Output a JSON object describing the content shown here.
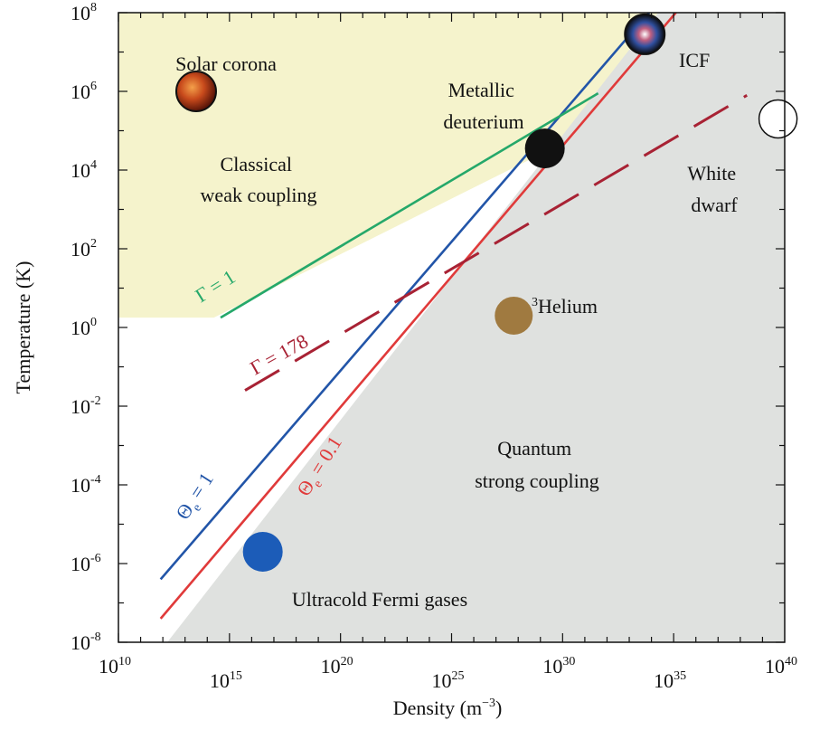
{
  "chart_data": {
    "type": "scatter",
    "title": "",
    "xlabel": "Density (m^-3)",
    "ylabel": "Temperature (K)",
    "x_scale": "log10",
    "y_scale": "log10",
    "xlim_log10": [
      10,
      40
    ],
    "ylim_log10": [
      -8,
      8
    ],
    "x_ticks": [
      {
        "base": "10",
        "exp": "10",
        "log": 10
      },
      {
        "base": "10",
        "exp": "15",
        "log": 15
      },
      {
        "base": "10",
        "exp": "20",
        "log": 20
      },
      {
        "base": "10",
        "exp": "25",
        "log": 25
      },
      {
        "base": "10",
        "exp": "30",
        "log": 30
      },
      {
        "base": "10",
        "exp": "35",
        "log": 35
      },
      {
        "base": "10",
        "exp": "40",
        "log": 40
      }
    ],
    "y_ticks": [
      {
        "base": "10",
        "exp": "8",
        "log": 8
      },
      {
        "base": "10",
        "exp": "6",
        "log": 6
      },
      {
        "base": "10",
        "exp": "4",
        "log": 4
      },
      {
        "base": "10",
        "exp": "2",
        "log": 2
      },
      {
        "base": "10",
        "exp": "0",
        "log": 0
      },
      {
        "base": "10",
        "exp": "-2",
        "log": -2
      },
      {
        "base": "10",
        "exp": "-4",
        "log": -4
      },
      {
        "base": "10",
        "exp": "-6",
        "log": -6
      },
      {
        "base": "10",
        "exp": "-8",
        "log": -8
      }
    ],
    "axis_labels": {
      "x": {
        "prefix": "Density (m",
        "sup": "−3",
        "suffix": ")"
      },
      "y": "Temperature (K)"
    },
    "regions": [
      {
        "name": "classical-weak-coupling",
        "color": "#f5f3cc",
        "polygon_log": [
          [
            10,
            8
          ],
          [
            34.3,
            8
          ],
          [
            31.3,
            5.05
          ],
          [
            14.3,
            0.25
          ],
          [
            10,
            0.25
          ]
        ]
      },
      {
        "name": "quantum-strong-coupling",
        "color": "#dfe1df",
        "polygon_log": [
          [
            12.2,
            -8
          ],
          [
            40,
            -8
          ],
          [
            40,
            8
          ],
          [
            34.3,
            8
          ],
          [
            12.2,
            -8
          ]
        ]
      }
    ],
    "series": [
      {
        "name": "theta-e-1",
        "label_main": "Θ",
        "label_sub": "e",
        "label_rest": " = 1",
        "color": "#2255a8",
        "style": "solid",
        "points_log": [
          [
            11.9,
            -6.4
          ],
          [
            34.5,
            8.4
          ]
        ]
      },
      {
        "name": "theta-e-0.1",
        "label_main": "Θ",
        "label_sub": "e",
        "label_rest": " = 0.1",
        "color": "#e03a3a",
        "style": "solid",
        "points_log": [
          [
            11.9,
            -7.4
          ],
          [
            35.4,
            8.2
          ]
        ]
      },
      {
        "name": "gamma-1",
        "label_main": "Γ = 1",
        "color": "#25a86a",
        "style": "solid",
        "points_log": [
          [
            14.6,
            0.25
          ],
          [
            31.6,
            5.95
          ]
        ]
      },
      {
        "name": "gamma-178",
        "label_main": "Γ = 178",
        "color": "#a82234",
        "style": "dashed",
        "points_log": [
          [
            15.7,
            -1.6
          ],
          [
            38.3,
            5.9
          ]
        ]
      }
    ],
    "points": [
      {
        "name": "solar-corona",
        "label": "Solar corona",
        "x": 13.5,
        "y": 6.0,
        "color": "#c84a1c",
        "style": "textured"
      },
      {
        "name": "icf",
        "label": "ICF",
        "x": 33.7,
        "y": 7.45,
        "color": "#111111",
        "style": "textured"
      },
      {
        "name": "metallic-deuterium",
        "label": "Metallic deuterium",
        "x": 29.2,
        "y": 4.55,
        "color": "#111111",
        "style": "solid"
      },
      {
        "name": "white-dwarf",
        "label": "White dwarf",
        "x": 39.7,
        "y": 5.3,
        "color": "#ffffff",
        "style": "outline"
      },
      {
        "name": "helium-3",
        "label_sup": "3",
        "label": "Helium",
        "x": 27.8,
        "y": 0.3,
        "color": "#a07a40",
        "style": "solid"
      },
      {
        "name": "ultracold-fermi-gases",
        "label": "Ultracold Fermi gases",
        "x": 16.5,
        "y": -5.7,
        "color": "#1c5cb8",
        "style": "solid"
      }
    ],
    "annotations": [
      {
        "name": "classical-weak-coupling-label",
        "lines": [
          "Classical",
          "weak coupling"
        ]
      },
      {
        "name": "quantum-strong-coupling-label",
        "lines": [
          "Quantum",
          "strong coupling"
        ]
      }
    ]
  }
}
